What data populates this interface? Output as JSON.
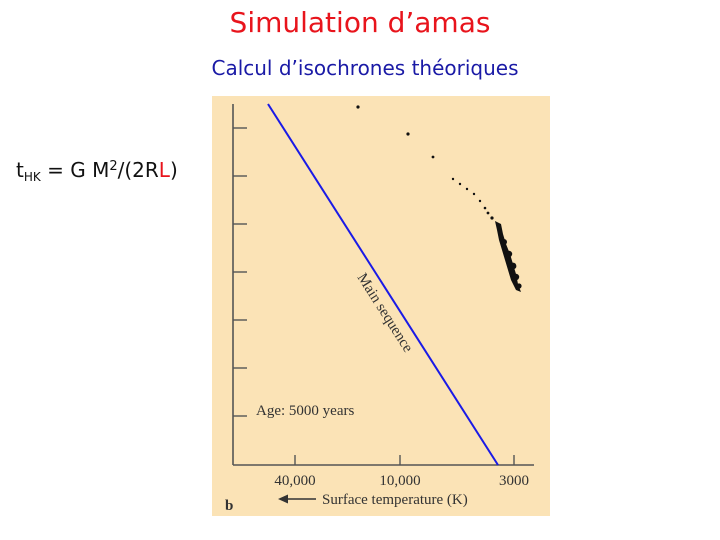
{
  "slide": {
    "title": "Simulation d’amas",
    "subtitle": "Calcul d’isochrones théoriques",
    "formula": {
      "t_sub": "HK",
      "eq": " = G M",
      "sq": "2",
      "tail1": "/(2R",
      "L": "L",
      "tail2": ")"
    }
  },
  "figure": {
    "panel_label": "b",
    "age_label": "Age: 5000 years",
    "sequence_label": "Main sequence",
    "xaxis_label": "Surface temperature (K)",
    "xticks": [
      "40,000",
      "10,000",
      "3000"
    ],
    "colors": {
      "sequence_line": "#1a1ae6",
      "stars": "#111111",
      "axis": "#555555",
      "background": "#fbe3b6"
    }
  }
}
